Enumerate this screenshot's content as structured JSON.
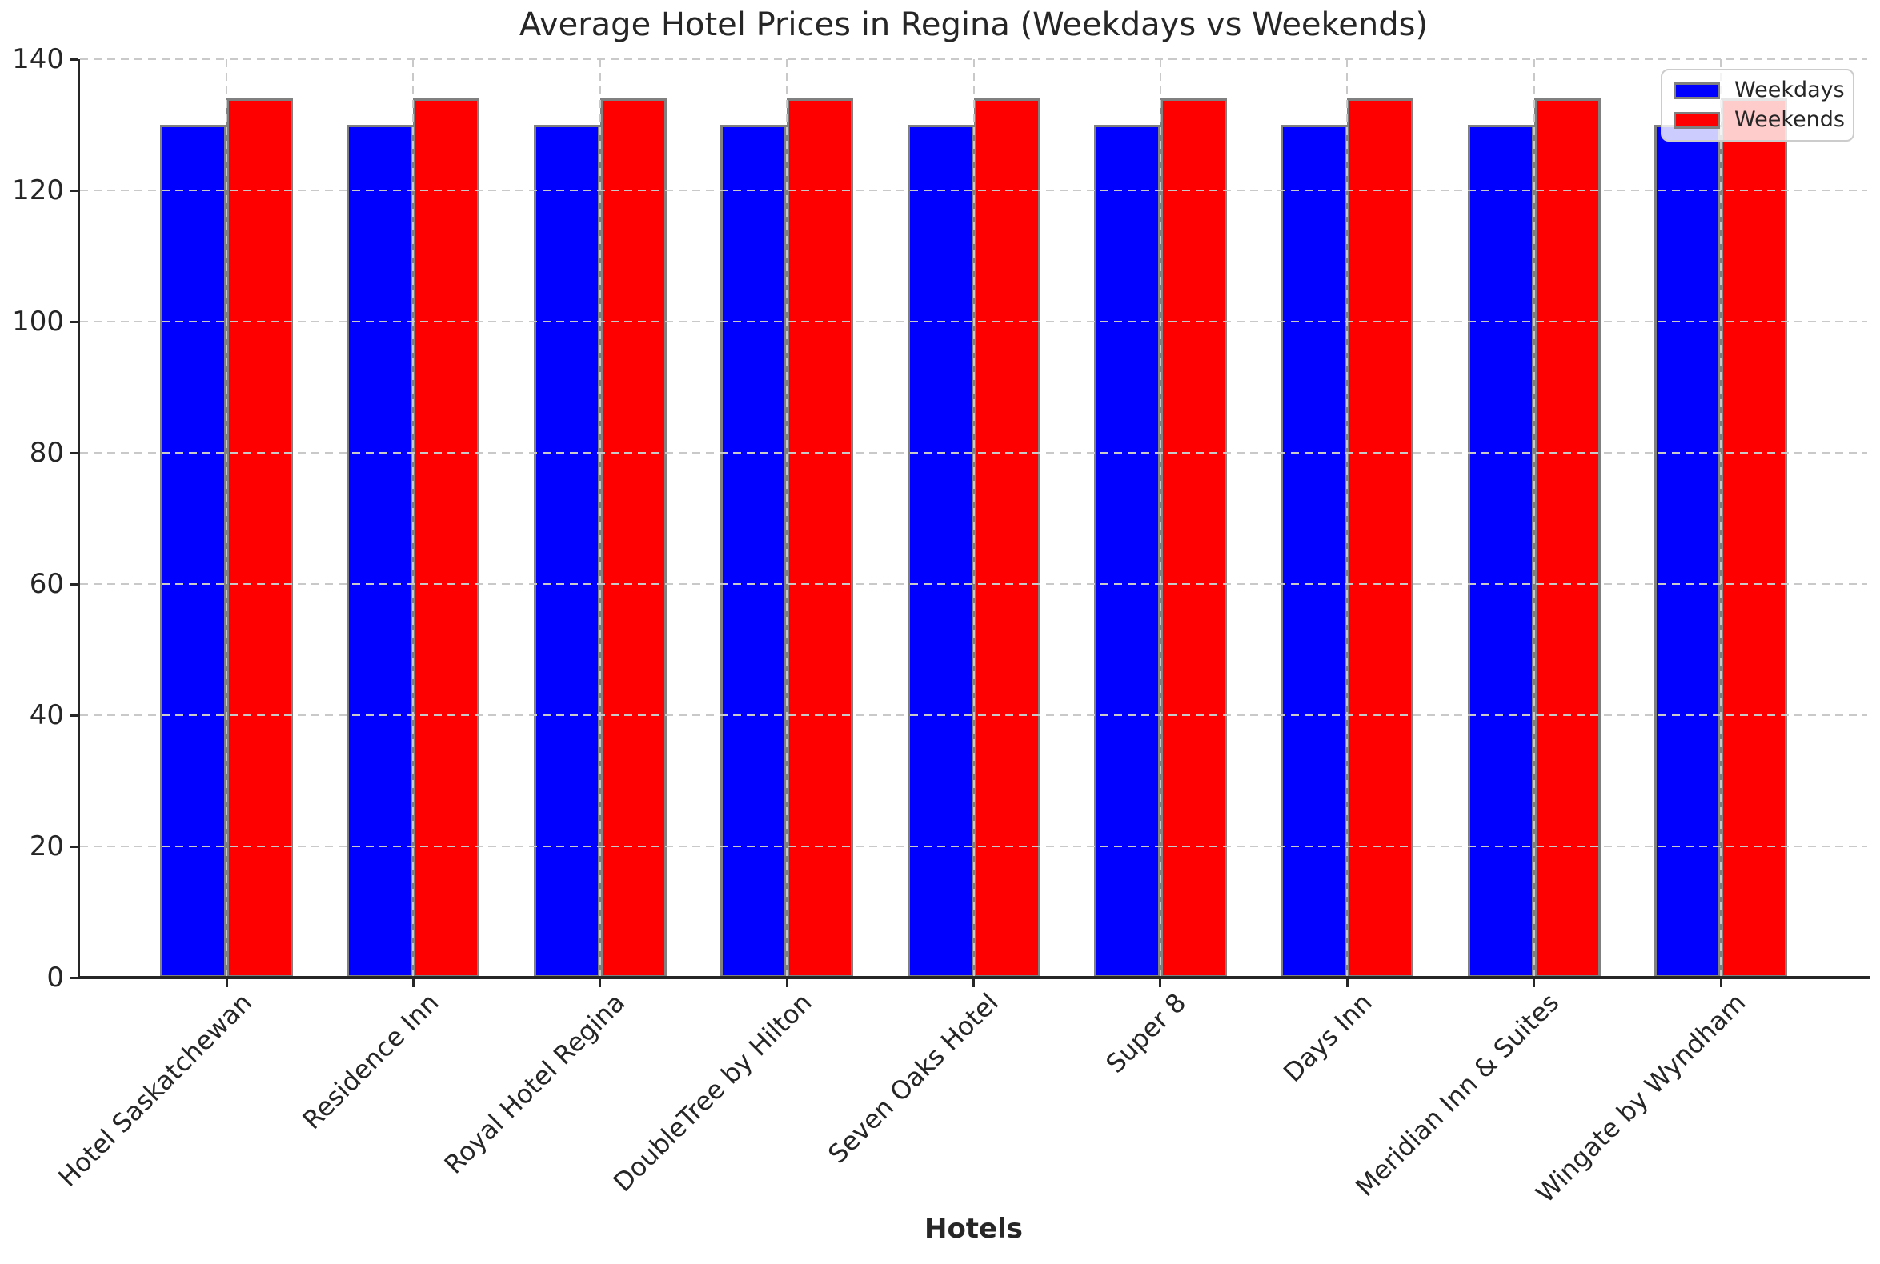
{
  "chart_data": {
    "type": "bar",
    "title": "Average Hotel Prices in Regina (Weekdays vs Weekends)",
    "xlabel": "Hotels",
    "ylabel": "",
    "categories": [
      "Hotel Saskatchewan",
      "Residence Inn",
      "Royal Hotel Regina",
      "DoubleTree by Hilton",
      "Seven Oaks Hotel",
      "Super 8",
      "Days Inn",
      "Meridian Inn & Suites",
      "Wingate by Wyndham"
    ],
    "series": [
      {
        "name": "Weekdays",
        "color": "#0000ff",
        "values": [
          130,
          130,
          130,
          130,
          130,
          130,
          130,
          130,
          130
        ]
      },
      {
        "name": "Weekends",
        "color": "#ff0000",
        "values": [
          134,
          134,
          134,
          134,
          134,
          134,
          134,
          134,
          134
        ]
      }
    ],
    "ylim": [
      0,
      140
    ],
    "yticks": [
      0,
      20,
      40,
      60,
      80,
      100,
      120,
      140
    ],
    "grid": true,
    "grid_style": "dashed",
    "legend_position": "upper right",
    "bar_edge_color": "#808080"
  },
  "colors": {
    "grid": "#c9c9c9",
    "spine": "#262626",
    "text": "#262626",
    "legend_border": "#cccccc",
    "background": "#ffffff"
  }
}
